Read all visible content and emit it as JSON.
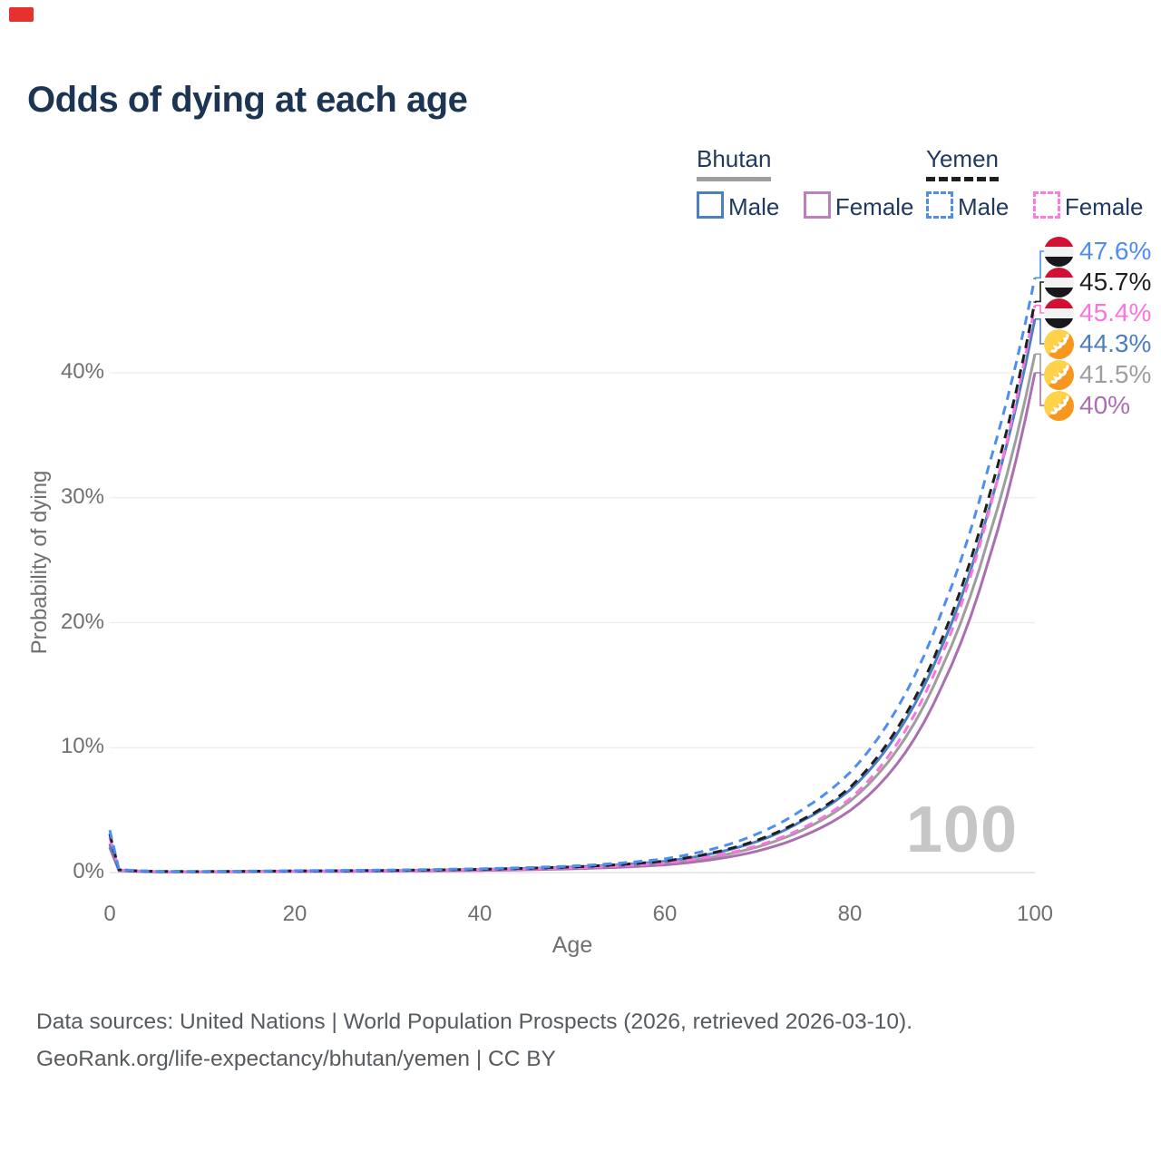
{
  "brand": {
    "color": "#e5322e"
  },
  "title": "Odds of dying at each age",
  "legend": {
    "groups": [
      {
        "name": "Bhutan",
        "line_style": "solid",
        "underline_color": "#9e9e9e",
        "items": [
          {
            "label": "Male",
            "color": "#4c7fc2",
            "dashed": false
          },
          {
            "label": "Female",
            "color": "#bd7fbd",
            "dashed": false
          }
        ]
      },
      {
        "name": "Yemen",
        "line_style": "dashed",
        "underline_color": "#1f1f1f",
        "items": [
          {
            "label": "Male",
            "color": "#4d8ef0",
            "dashed": true
          },
          {
            "label": "Female",
            "color": "#ff7ade",
            "dashed": true
          }
        ]
      }
    ]
  },
  "chart_data": {
    "type": "line",
    "title": "Odds of dying at each age",
    "xlabel": "Age",
    "ylabel": "Probability of dying",
    "x_ticks": [
      0,
      20,
      40,
      60,
      80,
      100
    ],
    "y_ticks": [
      "0%",
      "10%",
      "20%",
      "30%",
      "40%"
    ],
    "y_tick_values": [
      0,
      10,
      20,
      30,
      40
    ],
    "xlim": [
      0,
      100
    ],
    "ylim_pct": [
      0,
      48
    ],
    "grid": "horizontal-only",
    "watermark": "100",
    "x": [
      0,
      1,
      5,
      10,
      20,
      30,
      40,
      50,
      55,
      60,
      65,
      70,
      75,
      80,
      85,
      90,
      95,
      100
    ],
    "series": [
      {
        "name": "Bhutan total",
        "country": "Bhutan",
        "flag": "bhutan",
        "color": "#9e9e9e",
        "dashed": false,
        "end_label": "41.5%",
        "values": [
          2.1,
          0.16,
          0.06,
          0.06,
          0.1,
          0.13,
          0.2,
          0.36,
          0.5,
          0.74,
          1.22,
          2.05,
          3.45,
          5.7,
          9.7,
          16.5,
          26.8,
          41.5
        ]
      },
      {
        "name": "Bhutan Female",
        "country": "Bhutan",
        "flag": "bhutan",
        "color": "#ab6fb0",
        "dashed": false,
        "end_label": "40%",
        "values": [
          2.0,
          0.15,
          0.05,
          0.05,
          0.08,
          0.11,
          0.17,
          0.3,
          0.42,
          0.62,
          1.02,
          1.72,
          2.95,
          4.95,
          8.6,
          15.0,
          25.0,
          40.0
        ]
      },
      {
        "name": "Bhutan Male",
        "country": "Bhutan",
        "flag": "bhutan",
        "color": "#4c7fc2",
        "dashed": false,
        "end_label": "44.3%",
        "values": [
          2.3,
          0.18,
          0.07,
          0.07,
          0.12,
          0.16,
          0.25,
          0.44,
          0.62,
          0.9,
          1.5,
          2.5,
          4.2,
          6.6,
          11.0,
          18.2,
          29.0,
          44.3
        ]
      },
      {
        "name": "Yemen Female",
        "country": "Yemen",
        "flag": "yemen",
        "color": "#fb74de",
        "dashed": true,
        "end_label": "45.4%",
        "values": [
          2.8,
          0.2,
          0.08,
          0.07,
          0.11,
          0.14,
          0.22,
          0.38,
          0.52,
          0.76,
          1.28,
          2.15,
          3.6,
          5.9,
          10.2,
          17.5,
          28.8,
          45.4
        ]
      },
      {
        "name": "Yemen total",
        "country": "Yemen",
        "flag": "yemen",
        "color": "#1f1f1f",
        "dashed": true,
        "end_label": "45.7%",
        "values": [
          3.1,
          0.22,
          0.09,
          0.08,
          0.13,
          0.17,
          0.26,
          0.45,
          0.63,
          0.92,
          1.55,
          2.6,
          4.3,
          6.8,
          11.4,
          18.8,
          30.0,
          45.7
        ]
      },
      {
        "name": "Yemen Male",
        "country": "Yemen",
        "flag": "yemen",
        "color": "#4d8ef0",
        "dashed": true,
        "end_label": "47.6%",
        "values": [
          3.4,
          0.25,
          0.1,
          0.09,
          0.15,
          0.2,
          0.3,
          0.52,
          0.75,
          1.1,
          1.85,
          3.1,
          5.1,
          8.0,
          13.0,
          21.0,
          32.5,
          47.6
        ]
      }
    ]
  },
  "footer": {
    "line1": "Data sources: United Nations | World Population Prospects (2026, retrieved 2026-03-10).",
    "line2": "GeoRank.org/life-expectancy/bhutan/yemen | CC BY"
  }
}
